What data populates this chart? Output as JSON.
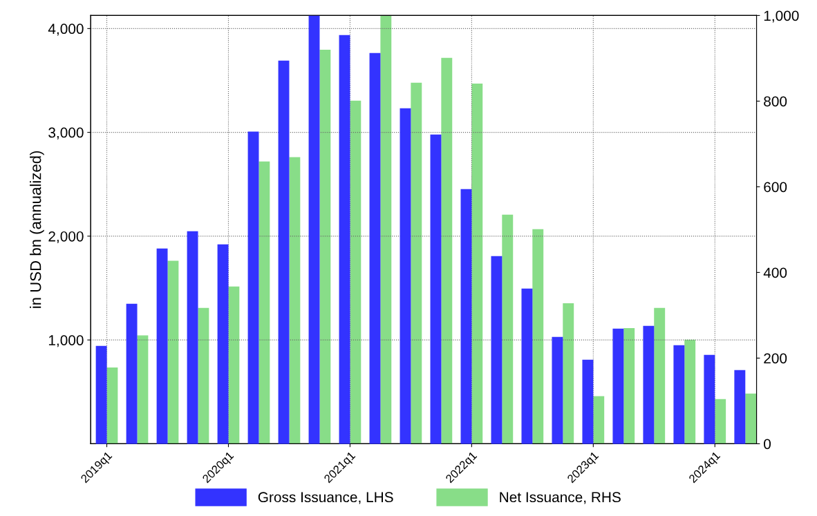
{
  "chart_data": {
    "type": "bar",
    "categories": [
      "2019q1",
      null,
      null,
      null,
      "2020q1",
      null,
      null,
      null,
      "2021q1",
      null,
      null,
      null,
      "2022q1",
      null,
      null,
      null,
      "2023q1",
      null,
      null,
      null,
      "2024q1",
      null
    ],
    "series": [
      {
        "name": "Gross Issuance, LHS",
        "color": "#3333ff",
        "values": [
          938,
          1344,
          1877,
          2043,
          1917,
          3002,
          3687,
          4120,
          3933,
          3760,
          3228,
          2975,
          2449,
          1804,
          1491,
          1025,
          805,
          1105,
          1131,
          945,
          852,
          705
        ]
      },
      {
        "name": "Net Issuance, RHS",
        "color": "#88dd88",
        "axis": "y2",
        "values": [
          177,
          252,
          426,
          316,
          366,
          658,
          668,
          919,
          800,
          1000,
          842,
          900,
          840,
          534,
          500,
          327,
          110,
          269,
          316,
          242,
          103,
          116
        ]
      }
    ],
    "ylabel": "in USD bn (annualized)",
    "ylim": [
      0,
      4126
    ],
    "yticks": [
      {
        "value": 1000,
        "label": "1,000"
      },
      {
        "value": 2000,
        "label": "2,000"
      },
      {
        "value": 3000,
        "label": "3,000"
      },
      {
        "value": 4000,
        "label": "4,000"
      }
    ],
    "y2lim": [
      0,
      1000
    ],
    "y2ticks": [
      0,
      200,
      400,
      600,
      800,
      {
        "value": 1000,
        "label": "1,000"
      }
    ],
    "grid": true,
    "legend": "bottom"
  }
}
